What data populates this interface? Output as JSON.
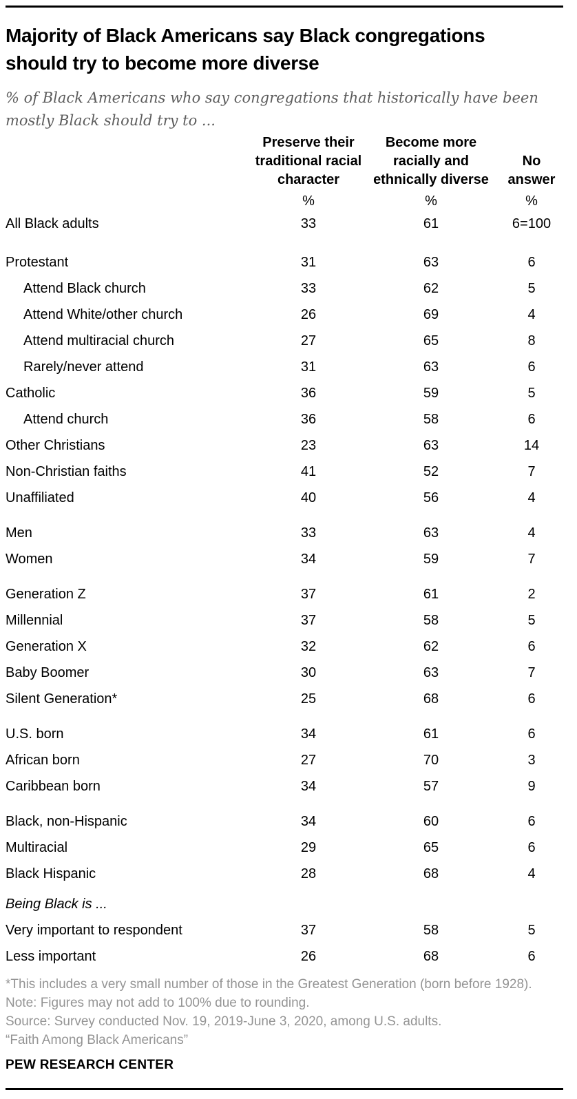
{
  "report": {
    "title_line1": "Majority of Black Americans say Black congregations",
    "title_line2": "should try to become more diverse",
    "subtitle_line1": "% of Black Americans who say congregations that historically have been",
    "subtitle_line2": "mostly Black should try to ...",
    "footnote": "*This includes a very small number of those in the Greatest Generation (born before 1928).",
    "note": "Note: Figures may not add to 100% due to rounding.",
    "source": "Source: Survey conducted Nov. 19, 2019-June 3, 2020, among U.S. adults.",
    "report_name": "“Faith Among Black Americans”",
    "brand": "PEW RESEARCH CENTER",
    "colors": {
      "text": "#000000",
      "subtitle_gray": "#5d5d5d",
      "notes_gray": "#949494",
      "rule_black": "#000000"
    }
  },
  "chart_data": {
    "type": "table",
    "title": "Majority of Black Americans say Black congregations should try to become more diverse",
    "subtitle": "% of Black Americans who say congregations that historically have been mostly Black should try to ...",
    "columns": [
      {
        "label": "Preserve their\ntraditional racial\ncharacter",
        "unit": "%"
      },
      {
        "label": "Become more\nracially and\nethnically diverse",
        "unit": "%"
      },
      {
        "label": "No\nanswer",
        "unit": "%"
      }
    ],
    "rows": [
      {
        "label": "All Black adults",
        "values": [
          "33",
          "61",
          "6=100"
        ]
      },
      {
        "label": "Protestant",
        "values": [
          "31",
          "63",
          "6"
        ],
        "gap": "lg"
      },
      {
        "label": "Attend Black church",
        "values": [
          "33",
          "62",
          "5"
        ],
        "indent": true
      },
      {
        "label": "Attend White/other church",
        "values": [
          "26",
          "69",
          "4"
        ],
        "indent": true
      },
      {
        "label": "Attend multiracial church",
        "values": [
          "27",
          "65",
          "8"
        ],
        "indent": true
      },
      {
        "label": "Rarely/never attend",
        "values": [
          "31",
          "63",
          "6"
        ],
        "indent": true
      },
      {
        "label": "Catholic",
        "values": [
          "36",
          "59",
          "5"
        ]
      },
      {
        "label": "Attend church",
        "values": [
          "36",
          "58",
          "6"
        ],
        "indent": true
      },
      {
        "label": "Other Christians",
        "values": [
          "23",
          "63",
          "14"
        ]
      },
      {
        "label": "Non-Christian faiths",
        "values": [
          "41",
          "52",
          "7"
        ]
      },
      {
        "label": "Unaffiliated",
        "values": [
          "40",
          "56",
          "4"
        ]
      },
      {
        "label": "Men",
        "values": [
          "33",
          "63",
          "4"
        ],
        "gap": "md"
      },
      {
        "label": "Women",
        "values": [
          "34",
          "59",
          "7"
        ]
      },
      {
        "label": "Generation Z",
        "values": [
          "37",
          "61",
          "2"
        ],
        "gap": "md"
      },
      {
        "label": "Millennial",
        "values": [
          "37",
          "58",
          "5"
        ]
      },
      {
        "label": "Generation X",
        "values": [
          "32",
          "62",
          "6"
        ]
      },
      {
        "label": "Baby Boomer",
        "values": [
          "30",
          "63",
          "7"
        ]
      },
      {
        "label": "Silent Generation*",
        "values": [
          "25",
          "68",
          "6"
        ]
      },
      {
        "label": "U.S. born",
        "values": [
          "34",
          "61",
          "6"
        ],
        "gap": "md"
      },
      {
        "label": "African born",
        "values": [
          "27",
          "70",
          "3"
        ]
      },
      {
        "label": "Caribbean born",
        "values": [
          "34",
          "57",
          "9"
        ]
      },
      {
        "label": "Black, non-Hispanic",
        "values": [
          "34",
          "60",
          "6"
        ],
        "gap": "md"
      },
      {
        "label": "Multiracial",
        "values": [
          "29",
          "65",
          "6"
        ]
      },
      {
        "label": "Black Hispanic",
        "values": [
          "28",
          "68",
          "4"
        ]
      },
      {
        "label": "Being Black is ...",
        "values": [
          "",
          "",
          ""
        ],
        "gap": "sm",
        "italic": true
      },
      {
        "label": "Very important to respondent",
        "values": [
          "37",
          "58",
          "5"
        ]
      },
      {
        "label": "Less important",
        "values": [
          "26",
          "68",
          "6"
        ]
      }
    ]
  }
}
